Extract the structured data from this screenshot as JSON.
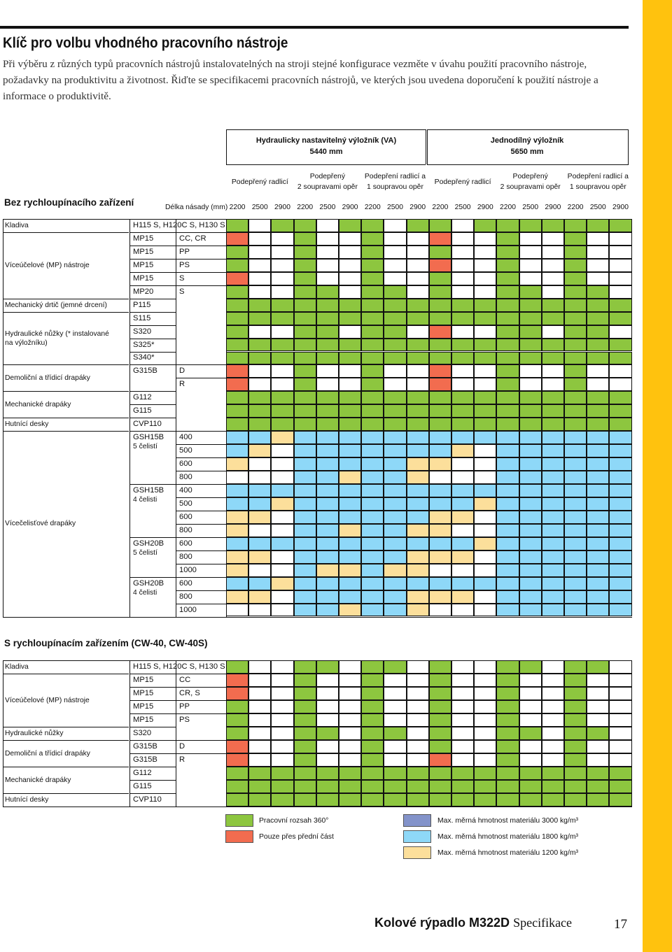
{
  "colors": {
    "green": "#8dc63f",
    "red": "#f26c4f",
    "blue": "#8ed8f8",
    "navy": "#8393ca",
    "yellow": "#fcdf9b",
    "white": "#ffffff",
    "sidebar": "#ffc20e"
  },
  "title": "Klíč pro volbu vhodného pracovního nástroje",
  "intro": "Při výběru z různých typů pracovních nástrojů instalovatelných na stroji stejné konfigurace vezměte v úvahu použití pracovního nástroje, požadavky na produktivitu a životnost. Řiďte se specifikacemi pracovních nástrojů, ve kterých jsou uvedena doporučení k použití nástroje a informace o produktivitě.",
  "groups": [
    {
      "l1": "Hydraulicky nastavitelný výložník (VA)",
      "l2": "5440 mm"
    },
    {
      "l1": "Jednodílný výložník",
      "l2": "5650 mm"
    }
  ],
  "subheaders": [
    {
      "l1": "Podepřený radlicí",
      "l2": ""
    },
    {
      "l1": "Podepřený",
      "l2": "2 soupravami opěr"
    },
    {
      "l1": "Podepření radlicí a",
      "l2": "1 soupravou opěr"
    },
    {
      "l1": "Podepřený radlicí",
      "l2": ""
    },
    {
      "l1": "Podepřený",
      "l2": "2 soupravami opěr"
    },
    {
      "l1": "Podepření radlicí a",
      "l2": "1 soupravou opěr"
    }
  ],
  "lengths_label": "Délka násady (mm)",
  "lengths": [
    "2200",
    "2500",
    "2900",
    "2200",
    "2500",
    "2900",
    "2200",
    "2500",
    "2900",
    "2200",
    "2500",
    "2900",
    "2200",
    "2500",
    "2900",
    "2200",
    "2500",
    "2900"
  ],
  "section1": {
    "title": "Bez rychloupínacího zařízení",
    "categories": [
      {
        "label": "Kladiva",
        "r0": 0,
        "r1": 0
      },
      {
        "label": "Víceúčelové (MP) nástroje",
        "r0": 1,
        "r1": 5
      },
      {
        "label": "Mechanický drtič (jemné drcení)",
        "r0": 6,
        "r1": 6
      },
      {
        "label": "Hydraulické nůžky (* instalované na výložníku)",
        "r0": 7,
        "r1": 10
      },
      {
        "label": "Demoliční a třídicí drapáky",
        "r0": 11,
        "r1": 12
      },
      {
        "label": "Mechanické drapáky",
        "r0": 13,
        "r1": 14
      },
      {
        "label": "Hutnící desky",
        "r0": 15,
        "r1": 15
      },
      {
        "label": "Vícečelisťové drapáky",
        "r0": 16,
        "r1": 29
      }
    ],
    "models": [
      {
        "label": "H115 S, H120C S, H130 S",
        "sub": "",
        "r0": 0,
        "r1": 0
      },
      {
        "label": "MP15",
        "sub": "",
        "r0": 1,
        "r1": 1
      },
      {
        "label": "MP15",
        "sub": "",
        "r0": 2,
        "r1": 2
      },
      {
        "label": "MP15",
        "sub": "",
        "r0": 3,
        "r1": 3
      },
      {
        "label": "MP15",
        "sub": "",
        "r0": 4,
        "r1": 4
      },
      {
        "label": "MP20",
        "sub": "",
        "r0": 5,
        "r1": 5
      },
      {
        "label": "P115",
        "sub": "",
        "r0": 6,
        "r1": 6
      },
      {
        "label": "S115",
        "sub": "",
        "r0": 7,
        "r1": 7
      },
      {
        "label": "S320",
        "sub": "",
        "r0": 8,
        "r1": 8
      },
      {
        "label": "S325*",
        "sub": "",
        "r0": 9,
        "r1": 9
      },
      {
        "label": "S340*",
        "sub": "",
        "r0": 10,
        "r1": 10
      },
      {
        "label": "G315B",
        "sub": "",
        "r0": 11,
        "r1": 12
      },
      {
        "label": "G112",
        "sub": "",
        "r0": 13,
        "r1": 13
      },
      {
        "label": "G115",
        "sub": "",
        "r0": 14,
        "r1": 14
      },
      {
        "label": "CVP110",
        "sub": "",
        "r0": 15,
        "r1": 15
      },
      {
        "label": "GSH15B",
        "sub": "5 čelistí",
        "r0": 16,
        "r1": 19
      },
      {
        "label": "GSH15B",
        "sub": "4 čelisti",
        "r0": 20,
        "r1": 23
      },
      {
        "label": "GSH20B",
        "sub": "5 čelistí",
        "r0": 24,
        "r1": 26
      },
      {
        "label": "GSH20B",
        "sub": "4 čelisti",
        "r0": 27,
        "r1": 29
      }
    ],
    "variants": [
      "",
      "CC, CR",
      "PP",
      "PS",
      "S",
      "S",
      "",
      "",
      "",
      "",
      "",
      "D",
      "R",
      "",
      "",
      "",
      "400",
      "500",
      "600",
      "800",
      "400",
      "500",
      "600",
      "800",
      "600",
      "800",
      "1000",
      "600",
      "800",
      "1000"
    ],
    "grid": [
      "GWGGWGGWGGWGGGGGGG",
      "RWWGWWGWWRWWGWWGWW",
      "GWWGWWGWWGWWGWWGWW",
      "GWWGWWGWWRWWGWWGWW",
      "RWWGWWGWWGWWGWWGWW",
      "GWWGGWGGWGWWGGWGGW",
      "GGGGGGGGGGGGGGGGGG",
      "GGGGGGGGGGGGGGGGGG",
      "GWWGGWGGWRWWGGWGGW",
      "GGGGGGGGGGGGGGGGGG",
      "GGGGGGGGGGGGGGGGGG",
      "RWWGWWGWWRWWGWWGWW",
      "RWWGWWGWWRWWGWWGWW",
      "GGGGGGGGGGGGGGGGGG",
      "GGGGGGGGGGGGGGGGGG",
      "GGGGGGGGGGGGGGGGGG",
      "BBYBBBBBBBBBBBBBBB",
      "BYWBBBBBBBYWBBBBBB",
      "YWWBBBBBYYWWBBBBBB",
      "WWWBBYBBYWWWBBBBBB",
      "BBBBBBBBBBBBBBBBBB",
      "BBYBBBBBBBBYBBBBBB",
      "YYWBBBBBBYYWBBBBBB",
      "YWWBBYBBYYWWBBBBBB",
      "BBBBBBBBBBBYBBBBBB",
      "YYWBBBBBYYYWBBBBBB",
      "YWWBYYBYYWWWBBBBBB",
      "BBYBBBBBBBBBBBBBBB",
      "YYWBBBBBYYYWBBBBBB",
      "WWWBBYBBYWWWBBBBBB"
    ]
  },
  "section2": {
    "title": "S rychloupínacím zařízením (CW-40, CW-40S)",
    "categories": [
      {
        "label": "Kladiva",
        "r0": 0,
        "r1": 0
      },
      {
        "label": "Víceúčelové (MP) nástroje",
        "r0": 1,
        "r1": 4
      },
      {
        "label": "Hydraulické nůžky",
        "r0": 5,
        "r1": 5
      },
      {
        "label": "Demoliční a třídicí drapáky",
        "r0": 6,
        "r1": 7
      },
      {
        "label": "Mechanické drapáky",
        "r0": 8,
        "r1": 9
      },
      {
        "label": "Hutnící desky",
        "r0": 10,
        "r1": 10
      }
    ],
    "models": [
      {
        "label": "H115 S, H120C S, H130 S",
        "sub": "",
        "r0": 0,
        "r1": 0
      },
      {
        "label": "MP15",
        "sub": "",
        "r0": 1,
        "r1": 1
      },
      {
        "label": "MP15",
        "sub": "",
        "r0": 2,
        "r1": 2
      },
      {
        "label": "MP15",
        "sub": "",
        "r0": 3,
        "r1": 3
      },
      {
        "label": "MP15",
        "sub": "",
        "r0": 4,
        "r1": 4
      },
      {
        "label": "S320",
        "sub": "",
        "r0": 5,
        "r1": 5
      },
      {
        "label": "G315B",
        "sub": "",
        "r0": 6,
        "r1": 6
      },
      {
        "label": "G315B",
        "sub": "",
        "r0": 7,
        "r1": 7
      },
      {
        "label": "G112",
        "sub": "",
        "r0": 8,
        "r1": 8
      },
      {
        "label": "G115",
        "sub": "",
        "r0": 9,
        "r1": 9
      },
      {
        "label": "CVP110",
        "sub": "",
        "r0": 10,
        "r1": 10
      }
    ],
    "variants": [
      "",
      "CC",
      "CR, S",
      "PP",
      "PS",
      "",
      "D",
      "R",
      "",
      "",
      ""
    ],
    "grid": [
      "GWWGGWGGWGWWGGWGGW",
      "RWWGWWGWWGWWGWWGWW",
      "RWWGWWGWWGWWGWWGWW",
      "GWWGWWGWWGWWGWWGWW",
      "GWWGWWGWWGWWGWWGWW",
      "GWWGGWGGWGWWGGWGGW",
      "RWWGWWGWWGWWGWWGWW",
      "RWWGWWGWWRWWGWWGWW",
      "GGGGGGGGGGGGGGGGGG",
      "GGGGGGGGGGGGGGGGGG",
      "GGGGGGGGGGGGGGGGGG"
    ]
  },
  "legend": [
    {
      "color": "green",
      "label": "Pracovní rozsah 360°"
    },
    {
      "color": "red",
      "label": "Pouze přes přední část"
    },
    {
      "color": "navy",
      "label": "Max. měrná hmotnost materiálu 3000 kg/m³"
    },
    {
      "color": "blue",
      "label": "Max. měrná hmotnost materiálu 1800 kg/m³"
    },
    {
      "color": "yellow",
      "label": "Max. měrná hmotnost materiálu 1200 kg/m³"
    }
  ],
  "footer": {
    "bold": "Kolové rýpadlo M322D",
    "regular": "Specifikace",
    "page": "17"
  }
}
